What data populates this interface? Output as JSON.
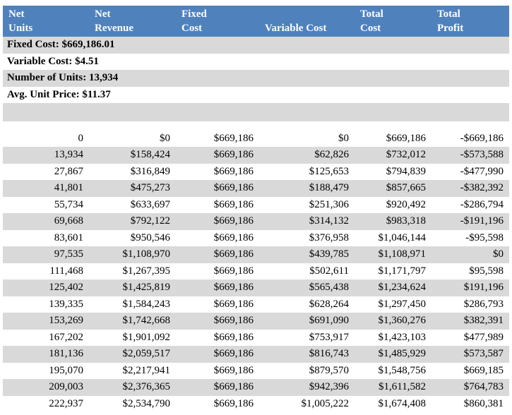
{
  "headers": [
    [
      "Net",
      "Units"
    ],
    [
      "Net",
      "Revenue"
    ],
    [
      "Fixed",
      "Cost"
    ],
    [
      "",
      "Variable Cost"
    ],
    [
      "Total",
      "Cost"
    ],
    [
      "Total",
      "Profit"
    ]
  ],
  "summary": {
    "fixed_cost": "Fixed Cost: $669,186.01",
    "variable_cost": "Variable Cost: $4.51",
    "number_of_units": "Number of Units: 13,934",
    "avg_unit_price": "Avg. Unit Price: $11.37"
  },
  "rows": [
    [
      "0",
      "$0",
      "$669,186",
      "$0",
      "$669,186",
      "-$669,186"
    ],
    [
      "13,934",
      "$158,424",
      "$669,186",
      "$62,826",
      "$732,012",
      "-$573,588"
    ],
    [
      "27,867",
      "$316,849",
      "$669,186",
      "$125,653",
      "$794,839",
      "-$477,990"
    ],
    [
      "41,801",
      "$475,273",
      "$669,186",
      "$188,479",
      "$857,665",
      "-$382,392"
    ],
    [
      "55,734",
      "$633,697",
      "$669,186",
      "$251,306",
      "$920,492",
      "-$286,794"
    ],
    [
      "69,668",
      "$792,122",
      "$669,186",
      "$314,132",
      "$983,318",
      "-$191,196"
    ],
    [
      "83,601",
      "$950,546",
      "$669,186",
      "$376,958",
      "$1,046,144",
      "-$95,598"
    ],
    [
      "97,535",
      "$1,108,970",
      "$669,186",
      "$439,785",
      "$1,108,971",
      "$0"
    ],
    [
      "111,468",
      "$1,267,395",
      "$669,186",
      "$502,611",
      "$1,171,797",
      "$95,598"
    ],
    [
      "125,402",
      "$1,425,819",
      "$669,186",
      "$565,438",
      "$1,234,624",
      "$191,196"
    ],
    [
      "139,335",
      "$1,584,243",
      "$669,186",
      "$628,264",
      "$1,297,450",
      "$286,793"
    ],
    [
      "153,269",
      "$1,742,668",
      "$669,186",
      "$691,090",
      "$1,360,276",
      "$382,391"
    ],
    [
      "167,202",
      "$1,901,092",
      "$669,186",
      "$753,917",
      "$1,423,103",
      "$477,989"
    ],
    [
      "181,136",
      "$2,059,517",
      "$669,186",
      "$816,743",
      "$1,485,929",
      "$573,587"
    ],
    [
      "195,070",
      "$2,217,941",
      "$669,186",
      "$879,570",
      "$1,548,756",
      "$669,185"
    ],
    [
      "209,003",
      "$2,376,365",
      "$669,186",
      "$942,396",
      "$1,611,582",
      "$764,783"
    ],
    [
      "222,937",
      "$2,534,790",
      "$669,186",
      "$1,005,222",
      "$1,674,408",
      "$860,381"
    ]
  ]
}
